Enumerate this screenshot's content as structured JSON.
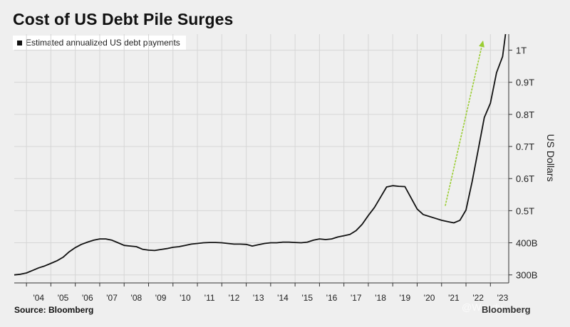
{
  "title": "Cost of US Debt Pile Surges",
  "source": "Source: Bloomberg",
  "brand": "Bloomberg",
  "watermark": "@Wendy",
  "colors": {
    "line": "#111111",
    "arrow": "#9acd32",
    "grid": "#d6d6d6",
    "background": "#efefef"
  },
  "chart_data": {
    "type": "line",
    "xlabel": "",
    "ylabel": "US Dollars",
    "legend": {
      "placement": "top-left",
      "entries": [
        "Estimated annualized US debt payments"
      ]
    },
    "grid": true,
    "xlim": [
      2003.5,
      2023.75
    ],
    "ylim": [
      275000000000.0,
      1050000000000.0
    ],
    "x_ticks": [
      "'04",
      "'05",
      "'06",
      "'07",
      "'08",
      "'09",
      "'10",
      "'11",
      "'12",
      "'13",
      "'14",
      "'15",
      "'16",
      "'17",
      "'18",
      "'19",
      "'20",
      "'21",
      "'22",
      "'23"
    ],
    "y_ticks": [
      {
        "value": 300000000000.0,
        "label": "300B"
      },
      {
        "value": 400000000000.0,
        "label": "400B"
      },
      {
        "value": 500000000000.0,
        "label": "0.5T"
      },
      {
        "value": 600000000000.0,
        "label": "0.6T"
      },
      {
        "value": 700000000000.0,
        "label": "0.7T"
      },
      {
        "value": 800000000000.0,
        "label": "0.8T"
      },
      {
        "value": 900000000000.0,
        "label": "0.9T"
      },
      {
        "value": 1000000000000.0,
        "label": "1T"
      }
    ],
    "series": [
      {
        "x": [
          2003.5,
          2003.75,
          2004.0,
          2004.25,
          2004.5,
          2004.75,
          2005.0,
          2005.25,
          2005.5,
          2005.75,
          2006.0,
          2006.25,
          2006.5,
          2006.75,
          2007.0,
          2007.25,
          2007.5,
          2007.75,
          2008.0,
          2008.25,
          2008.5,
          2008.75,
          2009.0,
          2009.25,
          2009.5,
          2009.75,
          2010.0,
          2010.25,
          2010.5,
          2010.75,
          2011.0,
          2011.25,
          2011.5,
          2011.75,
          2012.0,
          2012.25,
          2012.5,
          2012.75,
          2013.0,
          2013.25,
          2013.5,
          2013.75,
          2014.0,
          2014.25,
          2014.5,
          2014.75,
          2015.0,
          2015.25,
          2015.5,
          2015.75,
          2016.0,
          2016.25,
          2016.5,
          2016.75,
          2017.0,
          2017.25,
          2017.5,
          2017.75,
          2018.0,
          2018.25,
          2018.5,
          2018.75,
          2019.0,
          2019.25,
          2019.5,
          2019.75,
          2020.0,
          2020.25,
          2020.5,
          2020.75,
          2021.0,
          2021.25,
          2021.5,
          2021.75,
          2022.0,
          2022.25,
          2022.5,
          2022.75,
          2023.0,
          2023.25,
          2023.5,
          2023.62
        ],
        "values": [
          300000000000.0,
          302000000000.0,
          306000000000.0,
          314000000000.0,
          322000000000.0,
          328000000000.0,
          336000000000.0,
          344000000000.0,
          355000000000.0,
          372000000000.0,
          385000000000.0,
          395000000000.0,
          402000000000.0,
          408000000000.0,
          412000000000.0,
          412000000000.0,
          408000000000.0,
          400000000000.0,
          392000000000.0,
          390000000000.0,
          388000000000.0,
          380000000000.0,
          377000000000.0,
          376000000000.0,
          379000000000.0,
          382000000000.0,
          386000000000.0,
          388000000000.0,
          392000000000.0,
          396000000000.0,
          398000000000.0,
          400000000000.0,
          401000000000.0,
          401000000000.0,
          400000000000.0,
          398000000000.0,
          396000000000.0,
          396000000000.0,
          395000000000.0,
          390000000000.0,
          394000000000.0,
          398000000000.0,
          400000000000.0,
          400000000000.0,
          402000000000.0,
          402000000000.0,
          401000000000.0,
          400000000000.0,
          402000000000.0,
          408000000000.0,
          412000000000.0,
          410000000000.0,
          412000000000.0,
          418000000000.0,
          422000000000.0,
          426000000000.0,
          438000000000.0,
          458000000000.0,
          485000000000.0,
          510000000000.0,
          542000000000.0,
          574000000000.0,
          578000000000.0,
          576000000000.0,
          575000000000.0,
          540000000000.0,
          505000000000.0,
          488000000000.0,
          482000000000.0,
          476000000000.0,
          470000000000.0,
          466000000000.0,
          462000000000.0,
          470000000000.0,
          502000000000.0,
          590000000000.0,
          690000000000.0,
          790000000000.0,
          835000000000.0,
          930000000000.0,
          980000000000.0,
          1050000000000.0
        ]
      }
    ],
    "annotations": [
      {
        "type": "arrow",
        "from": [
          2021.15,
          515000000000.0
        ],
        "to": [
          2022.7,
          1030000000000.0
        ]
      }
    ]
  }
}
